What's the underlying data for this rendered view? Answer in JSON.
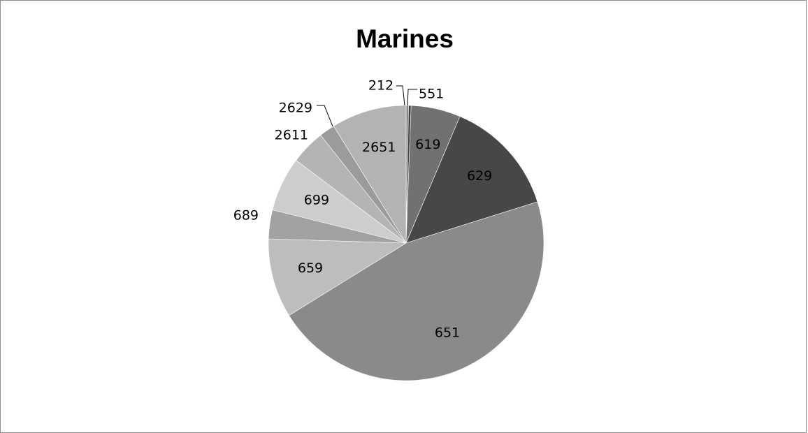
{
  "chart_data": {
    "type": "pie",
    "title": "Marines",
    "categories": [
      "212",
      "551",
      "619",
      "629",
      "651",
      "659",
      "689",
      "699",
      "2611",
      "2629",
      "2651"
    ],
    "values": [
      0.3,
      0.3,
      6.0,
      14.2,
      47.5,
      9.6,
      3.5,
      6.6,
      4.2,
      1.9,
      9.1
    ],
    "colors": [
      "#888888",
      "#3f3f3f",
      "#717171",
      "#474747",
      "#8a8a8a",
      "#bdbdbd",
      "#a2a2a2",
      "#cdcdcd",
      "#b4b4b4",
      "#9b9b9b",
      "#b3b3b3"
    ],
    "legend": "none"
  }
}
